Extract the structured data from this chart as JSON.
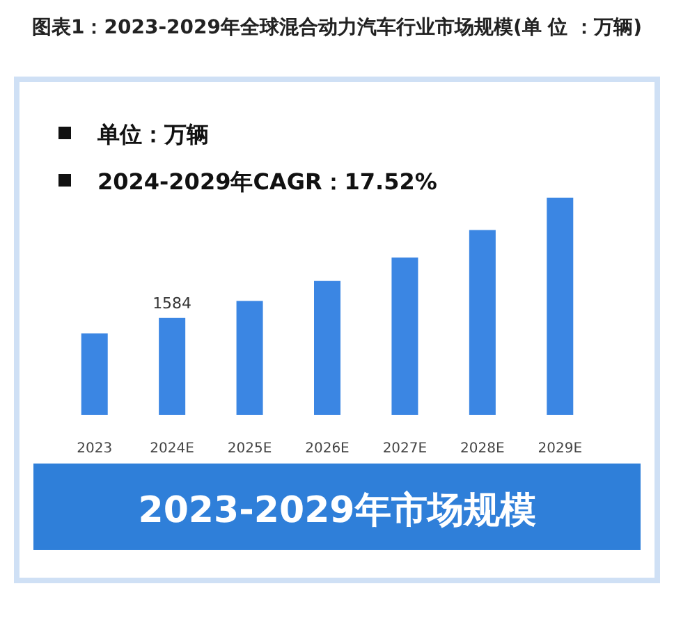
{
  "chart_data": {
    "type": "bar",
    "title": "图表1：2023-2029年全球混合动力汽车行业市场规模(单 位 ：万辆)",
    "subtitle": "2023-2029年市场规模",
    "categories": [
      "2023",
      "2024E",
      "2025E",
      "2026E",
      "2027E",
      "2028E",
      "2029E"
    ],
    "values": [
      1330,
      1584,
      1862,
      2188,
      2571,
      3021,
      3550
    ],
    "value_labels": [
      null,
      "1584",
      null,
      null,
      null,
      null,
      null
    ],
    "color": "#3b86e3",
    "annotations": [
      "单位：万辆",
      "2024-2029年CAGR：17.52%"
    ]
  }
}
